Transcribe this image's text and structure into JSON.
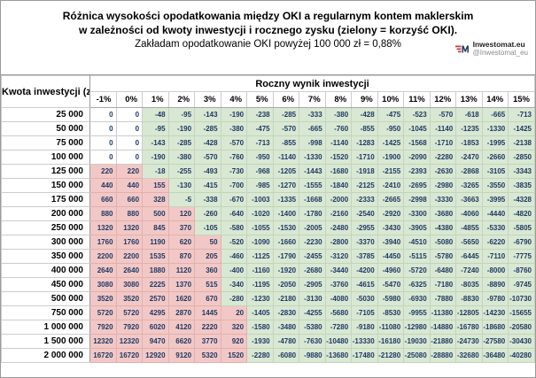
{
  "title": {
    "line1": "Różnica wysokości opodatkowania między OKI a regularnym kontem maklerskim",
    "line2": "w zależności od kwoty inwestycji i rocznego zysku (zielony = korzyść OKI).",
    "line3": "Zakładam opodatkowanie OKI powyżej 100 000 zł = 0,88%"
  },
  "logo": {
    "icon": "inwestomat-logo-icon",
    "name": "Inwestomat.eu",
    "handle": "@Inwestomat_eu"
  },
  "table": {
    "corner_header": "Kwota inwestycji (zł)",
    "group_header": "Roczny wynik inwestycji"
  },
  "colors": {
    "positive_bg": "#f2c8c6",
    "negative_bg": "#d9e8d2",
    "zero_bg": "#ffffff",
    "value_text": "#1f3864",
    "logo_red": "#b94441",
    "logo_navy": "#1f3864"
  },
  "chart_data": {
    "type": "table",
    "title": "Różnica wysokości opodatkowania między OKI a regularnym kontem maklerskim w zależności od kwoty inwestycji i rocznego zysku (zielony = korzyść OKI). Zakładam opodatkowanie OKI powyżej 100 000 zł = 0,88%",
    "row_axis_label": "Kwota inwestycji (zł)",
    "column_axis_label": "Roczny wynik inwestycji",
    "columns": [
      "-1%",
      "0%",
      "1%",
      "2%",
      "3%",
      "4%",
      "5%",
      "6%",
      "7%",
      "8%",
      "9%",
      "10%",
      "11%",
      "12%",
      "13%",
      "14%",
      "15%"
    ],
    "color_rule": "positive=pink, negative=green (korzyść OKI), zero=white",
    "rows": [
      {
        "label": "25 000",
        "values": [
          0,
          0,
          -48,
          -95,
          -143,
          -190,
          -238,
          -285,
          -333,
          -380,
          -428,
          -475,
          -523,
          -570,
          -618,
          -665,
          -713
        ]
      },
      {
        "label": "50 000",
        "values": [
          0,
          0,
          -95,
          -190,
          -285,
          -380,
          -475,
          -570,
          -665,
          -760,
          -855,
          -950,
          -1045,
          -1140,
          -1235,
          -1330,
          -1425
        ]
      },
      {
        "label": "75 000",
        "values": [
          0,
          0,
          -143,
          -285,
          -428,
          -570,
          -713,
          -855,
          -998,
          -1140,
          -1283,
          -1425,
          -1568,
          -1710,
          -1853,
          -1995,
          -2138
        ]
      },
      {
        "label": "100 000",
        "values": [
          0,
          0,
          -190,
          -380,
          -570,
          -760,
          -950,
          -1140,
          -1330,
          -1520,
          -1710,
          -1900,
          -2090,
          -2280,
          -2470,
          -2660,
          -2850
        ]
      },
      {
        "label": "125 000",
        "values": [
          220,
          220,
          -18,
          -255,
          -493,
          -730,
          -968,
          -1205,
          -1443,
          -1680,
          -1918,
          -2155,
          -2393,
          -2630,
          -2868,
          -3105,
          -3343
        ]
      },
      {
        "label": "150 000",
        "values": [
          440,
          440,
          155,
          -130,
          -415,
          -700,
          -985,
          -1270,
          -1555,
          -1840,
          -2125,
          -2410,
          -2695,
          -2980,
          -3265,
          -3550,
          -3835
        ]
      },
      {
        "label": "175 000",
        "values": [
          660,
          660,
          328,
          -5,
          -338,
          -670,
          -1003,
          -1335,
          -1668,
          -2000,
          -2333,
          -2665,
          -2998,
          -3330,
          -3663,
          -3995,
          -4328
        ]
      },
      {
        "label": "200 000",
        "values": [
          880,
          880,
          500,
          120,
          -260,
          -640,
          -1020,
          -1400,
          -1780,
          -2160,
          -2540,
          -2920,
          -3300,
          -3680,
          -4060,
          -4440,
          -4820
        ]
      },
      {
        "label": "250 000",
        "values": [
          1320,
          1320,
          845,
          370,
          -105,
          -580,
          -1055,
          -1530,
          -2005,
          -2480,
          -2955,
          -3430,
          -3905,
          -4380,
          -4855,
          -5330,
          -5805
        ]
      },
      {
        "label": "300 000",
        "values": [
          1760,
          1760,
          1190,
          620,
          50,
          -520,
          -1090,
          -1660,
          -2230,
          -2800,
          -3370,
          -3940,
          -4510,
          -5080,
          -5650,
          -6220,
          -6790
        ]
      },
      {
        "label": "350 000",
        "values": [
          2200,
          2200,
          1535,
          870,
          205,
          -460,
          -1125,
          -1790,
          -2455,
          -3120,
          -3785,
          -4450,
          -5115,
          -5780,
          -6445,
          -7110,
          -7775
        ]
      },
      {
        "label": "400 000",
        "values": [
          2640,
          2640,
          1880,
          1120,
          360,
          -400,
          -1160,
          -1920,
          -2680,
          -3440,
          -4200,
          -4960,
          -5720,
          -6480,
          -7240,
          -8000,
          -8760
        ]
      },
      {
        "label": "450 000",
        "values": [
          3080,
          3080,
          2225,
          1370,
          515,
          -340,
          -1195,
          -2050,
          -2905,
          -3760,
          -4615,
          -5470,
          -6325,
          -7180,
          -8035,
          -8890,
          -9745
        ]
      },
      {
        "label": "500 000",
        "values": [
          3520,
          3520,
          2570,
          1620,
          670,
          -280,
          -1230,
          -2180,
          -3130,
          -4080,
          -5030,
          -5980,
          -6930,
          -7880,
          -8830,
          -9780,
          -10730
        ]
      },
      {
        "label": "750 000",
        "values": [
          5720,
          5720,
          4295,
          2870,
          1445,
          20,
          -1405,
          -2830,
          -4255,
          -5680,
          -7105,
          -8530,
          -9955,
          -11380,
          -12805,
          -14230,
          -15655
        ]
      },
      {
        "label": "1 000 000",
        "values": [
          7920,
          7920,
          6020,
          4120,
          2220,
          320,
          -1580,
          -3480,
          -5380,
          -7280,
          -9180,
          -11080,
          -12980,
          -14880,
          -16780,
          -18680,
          -20580
        ]
      },
      {
        "label": "1 500 000",
        "values": [
          12320,
          12320,
          9470,
          6620,
          3770,
          920,
          -1930,
          -4780,
          -7630,
          -10480,
          -13330,
          -16180,
          -19030,
          -21880,
          -24730,
          -27580,
          -30430
        ]
      },
      {
        "label": "2 000 000",
        "values": [
          16720,
          16720,
          12920,
          9120,
          5320,
          1520,
          -2280,
          -6080,
          -9880,
          -13680,
          -17480,
          -21280,
          -25080,
          -28880,
          -32680,
          -36480,
          -40280
        ]
      }
    ]
  }
}
